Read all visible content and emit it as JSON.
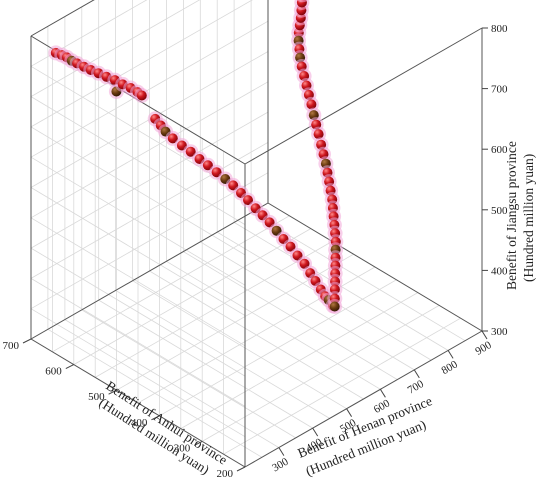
{
  "chart_data": {
    "type": "scatter",
    "subtype": "3d",
    "title": "",
    "grid": true,
    "axes": {
      "x": {
        "label_lines": [
          "Benefit of Anhui province",
          "(Hundred million yuan)"
        ],
        "range": [
          200,
          700
        ],
        "ticks": [
          "200",
          "300",
          "400",
          "500",
          "600",
          "700"
        ]
      },
      "y": {
        "label_lines": [
          "Benefit of Henan province",
          "(Hundred million yuan)"
        ],
        "range": [
          200,
          900
        ],
        "ticks": [
          "300",
          "400",
          "500",
          "600",
          "700",
          "800",
          "900"
        ]
      },
      "z": {
        "label_lines": [
          "Benefit of Jiangsu province",
          "(Hundred million yuan)"
        ],
        "range": [
          300,
          800
        ],
        "ticks": [
          "300",
          "400",
          "500",
          "600",
          "700",
          "800"
        ]
      }
    },
    "marker": {
      "base_color": "#c01018",
      "highlight_color": "#ff6a6a",
      "dark_color": "#6a3a10",
      "glow_color": "#f2a8d8"
    },
    "points": [
      [
        650,
        210,
        790
      ],
      [
        640,
        215,
        789
      ],
      [
        632,
        220,
        787
      ],
      [
        622,
        222,
        785
      ],
      [
        612,
        225,
        784
      ],
      [
        600,
        230,
        782
      ],
      [
        588,
        235,
        780
      ],
      [
        574,
        240,
        779
      ],
      [
        560,
        246,
        777
      ],
      [
        545,
        252,
        776
      ],
      [
        530,
        256,
        774
      ],
      [
        516,
        262,
        772
      ],
      [
        505,
        268,
        768
      ],
      [
        498,
        272,
        764
      ],
      [
        540,
        250,
        760
      ],
      [
        470,
        276,
        736
      ],
      [
        460,
        280,
        728
      ],
      [
        452,
        284,
        720
      ],
      [
        440,
        290,
        712
      ],
      [
        425,
        298,
        704
      ],
      [
        410,
        305,
        698
      ],
      [
        395,
        312,
        690
      ],
      [
        380,
        318,
        684
      ],
      [
        366,
        326,
        676
      ],
      [
        352,
        334,
        668
      ],
      [
        340,
        342,
        660
      ],
      [
        328,
        350,
        650
      ],
      [
        318,
        358,
        640
      ],
      [
        305,
        364,
        630
      ],
      [
        295,
        372,
        620
      ],
      [
        285,
        380,
        610
      ],
      [
        275,
        388,
        598
      ],
      [
        265,
        396,
        586
      ],
      [
        255,
        404,
        575
      ],
      [
        245,
        412,
        562
      ],
      [
        235,
        420,
        550
      ],
      [
        228,
        428,
        535
      ],
      [
        222,
        436,
        522
      ],
      [
        216,
        444,
        508
      ],
      [
        212,
        452,
        496
      ],
      [
        210,
        460,
        488
      ],
      [
        208,
        470,
        476
      ],
      [
        212,
        480,
        470
      ],
      [
        218,
        488,
        478
      ],
      [
        224,
        496,
        488
      ],
      [
        230,
        504,
        496
      ],
      [
        236,
        512,
        504
      ],
      [
        242,
        520,
        512
      ],
      [
        248,
        528,
        520
      ],
      [
        254,
        536,
        528
      ],
      [
        260,
        544,
        536
      ],
      [
        268,
        552,
        544
      ],
      [
        276,
        560,
        552
      ],
      [
        284,
        568,
        560
      ],
      [
        292,
        576,
        568
      ],
      [
        300,
        584,
        576
      ],
      [
        310,
        592,
        584
      ],
      [
        320,
        600,
        592
      ],
      [
        330,
        608,
        600
      ],
      [
        340,
        616,
        608
      ],
      [
        352,
        624,
        616
      ],
      [
        364,
        632,
        624
      ],
      [
        376,
        640,
        634
      ],
      [
        388,
        648,
        642
      ],
      [
        400,
        656,
        650
      ],
      [
        412,
        664,
        660
      ],
      [
        424,
        672,
        668
      ],
      [
        436,
        680,
        676
      ],
      [
        448,
        688,
        684
      ],
      [
        460,
        696,
        692
      ],
      [
        470,
        704,
        700
      ],
      [
        478,
        712,
        708
      ],
      [
        486,
        720,
        716
      ],
      [
        492,
        728,
        724
      ],
      [
        496,
        736,
        732
      ],
      [
        500,
        744,
        740
      ],
      [
        505,
        752,
        748
      ],
      [
        510,
        760,
        756
      ],
      [
        515,
        768,
        764
      ],
      [
        520,
        776,
        770
      ],
      [
        525,
        784,
        776
      ],
      [
        530,
        792,
        782
      ],
      [
        535,
        800,
        786
      ],
      [
        540,
        810,
        788
      ],
      [
        548,
        820,
        790
      ],
      [
        556,
        830,
        790
      ],
      [
        564,
        840,
        790
      ],
      [
        572,
        850,
        790
      ],
      [
        580,
        860,
        789
      ],
      [
        590,
        870,
        789
      ],
      [
        600,
        880,
        788
      ],
      [
        610,
        888,
        788
      ],
      [
        620,
        895,
        787
      ],
      [
        630,
        898,
        786
      ],
      [
        640,
        900,
        785
      ]
    ]
  }
}
